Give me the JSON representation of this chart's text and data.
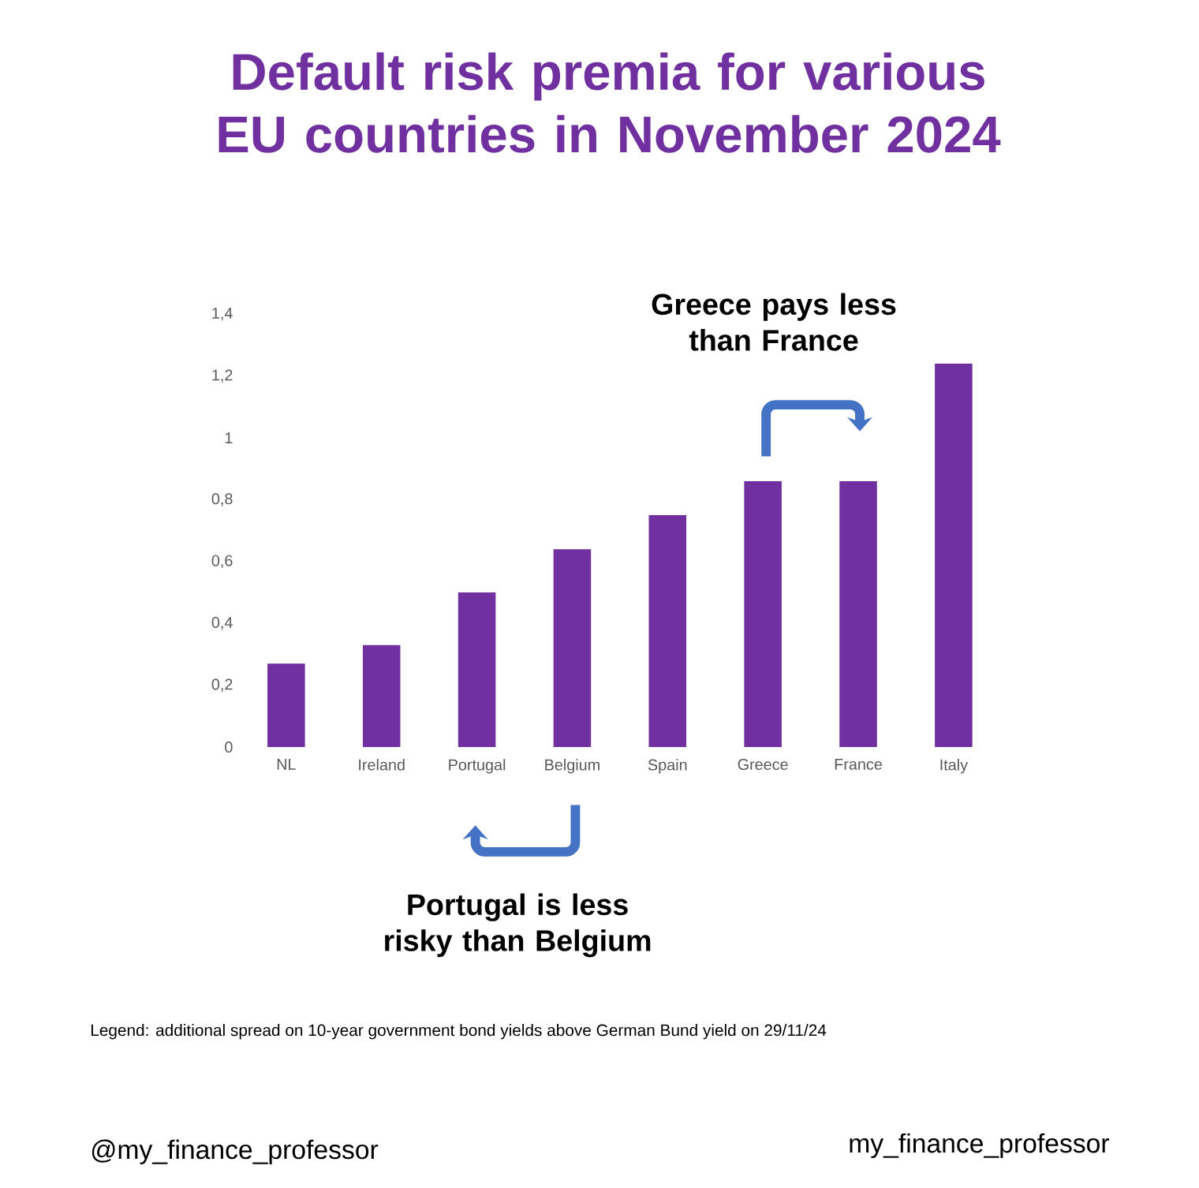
{
  "chart_data": {
    "type": "bar",
    "title": "Default risk premia for various EU countries in November 2024",
    "categories": [
      "NL",
      "Ireland",
      "Portugal",
      "Belgium",
      "Spain",
      "Greece",
      "France",
      "Italy"
    ],
    "values": [
      0.27,
      0.33,
      0.5,
      0.64,
      0.75,
      0.86,
      0.86,
      1.24
    ],
    "color": "#7030a0",
    "ylim": [
      0,
      1.4
    ],
    "yticks": [
      0,
      {
        "value": 0.2,
        "label": "0,2"
      },
      {
        "value": 0.4,
        "label": "0,4"
      },
      {
        "value": 0.6,
        "label": "0,6"
      },
      {
        "value": 0.8,
        "label": "0,8"
      },
      1,
      {
        "value": 1.2,
        "label": "1,2"
      },
      {
        "value": 1.4,
        "label": "1,4"
      }
    ],
    "grid": false,
    "annotations": [
      "Greece pays less than France",
      "Portugal is less risky than Belgium",
      "Legend: additional spread on 10-year government bond yields above German Bund yield on 29/11/24",
      "@my_finance_professor",
      "my_finance_professor"
    ]
  }
}
